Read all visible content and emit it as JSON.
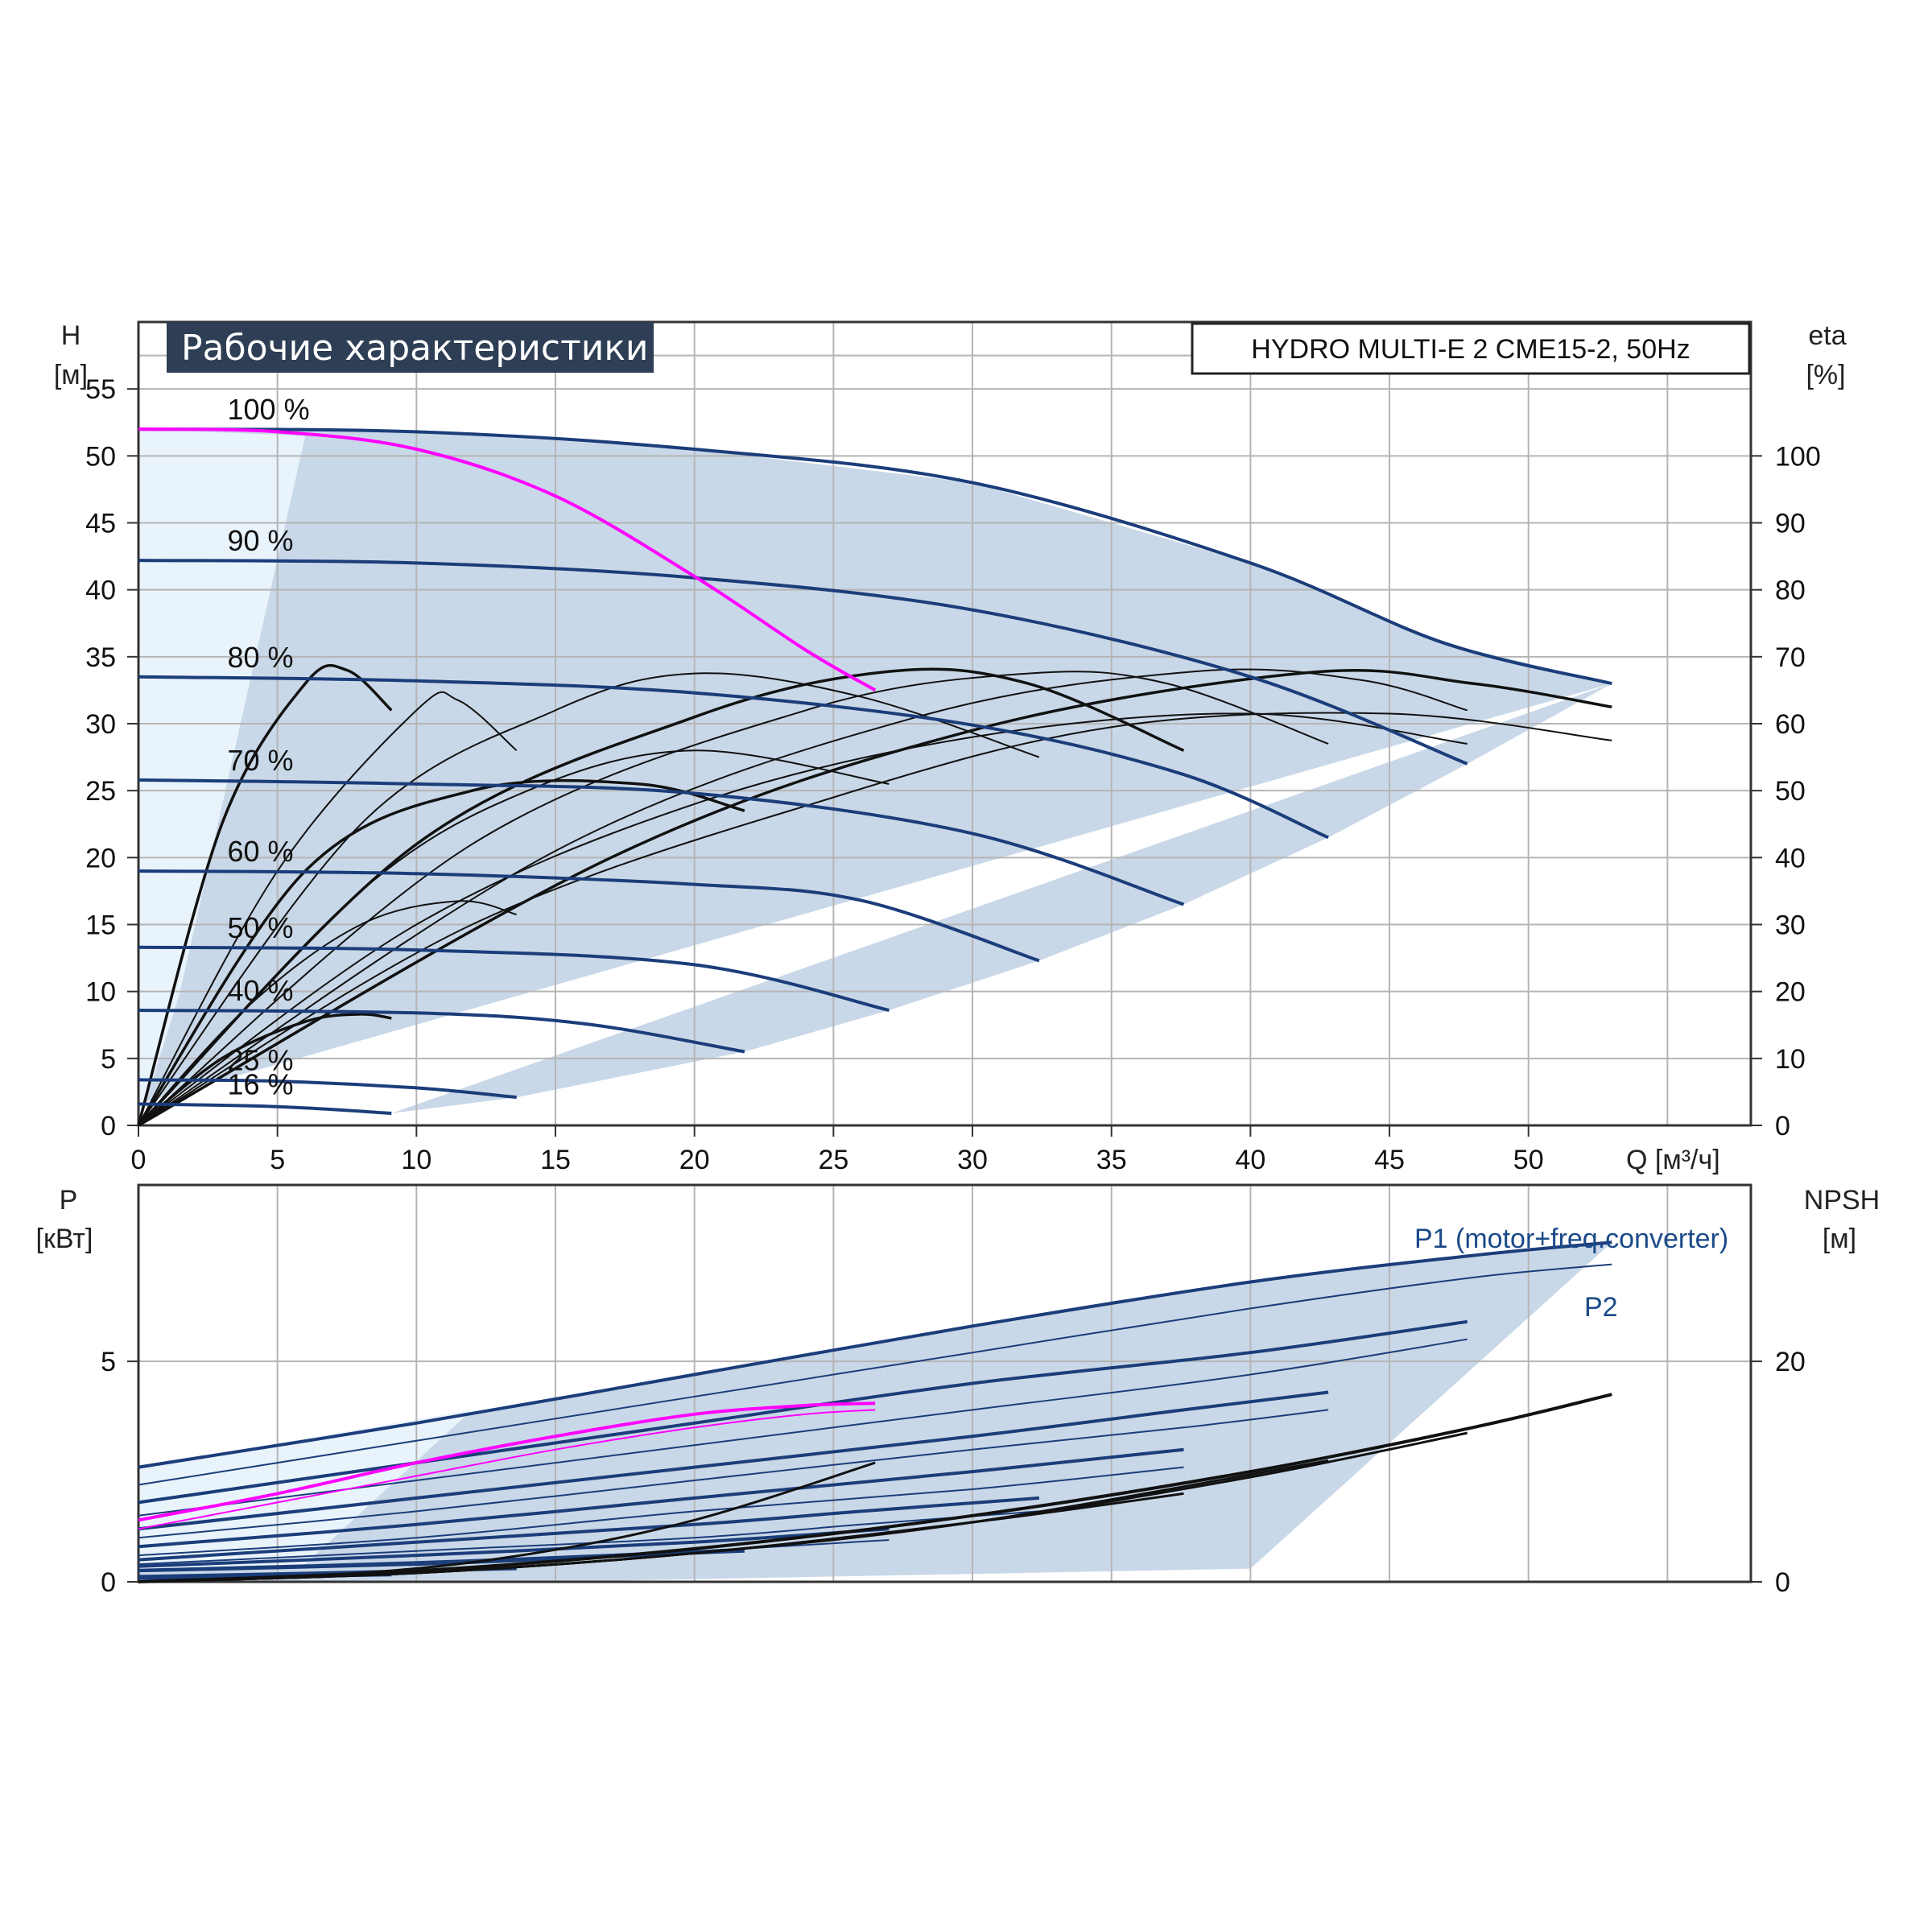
{
  "header": {
    "title": "Рабочие характеристики",
    "model": "HYDRO MULTI-E 2 CME15-2, 50Hz"
  },
  "colors": {
    "head_curve": "#1b3d7a",
    "duty_curve": "#ff00ff",
    "efficiency_curve": "#111111",
    "envelope_fill": "#c9d8e8",
    "light_fill": "#e9f3fb",
    "grid": "#b5b5b5",
    "header_bg": "#2d3e55"
  },
  "chart_data": [
    {
      "type": "line",
      "name_panel": "head",
      "xlabel": "Q [м³/ч]",
      "ylabel": "H",
      "ylabel_unit": "[м]",
      "y2label": "eta",
      "y2label_unit": "[%]",
      "xlim": [
        0,
        58
      ],
      "ylim": [
        0,
        60
      ],
      "y2lim": [
        0,
        120
      ],
      "x_ticks": [
        0,
        5,
        10,
        15,
        20,
        25,
        30,
        35,
        40,
        45,
        50
      ],
      "y_ticks": [
        0,
        5,
        10,
        15,
        20,
        25,
        30,
        35,
        40,
        45,
        50,
        55
      ],
      "y2_ticks": [
        0,
        10,
        20,
        30,
        40,
        50,
        60,
        70,
        80,
        90,
        100
      ],
      "grid": true,
      "speed_curves": [
        {
          "label": "100 %",
          "x": [
            0,
            10,
            20,
            30,
            40,
            47,
            53
          ],
          "y": [
            52,
            51.8,
            50.5,
            48,
            42,
            36,
            33
          ]
        },
        {
          "label": "90 %",
          "x": [
            0,
            10,
            20,
            30,
            40,
            47.8
          ],
          "y": [
            42.2,
            42.0,
            40.9,
            38.5,
            33.5,
            27
          ]
        },
        {
          "label": "80 %",
          "x": [
            0,
            10,
            20,
            30,
            37.6,
            42.8
          ],
          "y": [
            33.5,
            33.2,
            32.3,
            29.9,
            26.2,
            21.5
          ]
        },
        {
          "label": "70 %",
          "x": [
            0,
            10,
            20,
            30,
            37.6
          ],
          "y": [
            25.8,
            25.5,
            24.8,
            21.8,
            16.5
          ]
        },
        {
          "label": "60 %",
          "x": [
            0,
            10,
            20,
            26,
            32.4
          ],
          "y": [
            19.0,
            18.8,
            18.0,
            16.8,
            12.3
          ]
        },
        {
          "label": "50 %",
          "x": [
            0,
            10,
            20,
            27
          ],
          "y": [
            13.3,
            13.1,
            12.0,
            8.6
          ]
        },
        {
          "label": "40 %",
          "x": [
            0,
            10,
            16,
            21.8
          ],
          "y": [
            8.6,
            8.4,
            7.6,
            5.5
          ]
        },
        {
          "label": "25 %",
          "x": [
            0,
            5,
            10,
            13.6
          ],
          "y": [
            3.4,
            3.3,
            2.8,
            2.1
          ]
        },
        {
          "label": "16 %",
          "x": [
            0,
            5,
            9.1
          ],
          "y": [
            1.6,
            1.4,
            0.9
          ]
        }
      ],
      "duty_curve": {
        "x": [
          0,
          5,
          10,
          15,
          20,
          24,
          26.5
        ],
        "y": [
          52,
          51.8,
          50.5,
          47,
          41,
          35.5,
          32.5
        ]
      },
      "efficiency_curves_eta": [
        {
          "x": [
            0,
            3,
            6,
            7.5,
            9.1
          ],
          "y": [
            0,
            45,
            66,
            68,
            62
          ]
        },
        {
          "x": [
            0,
            5,
            10,
            11.5,
            13.6
          ],
          "y": [
            0,
            38,
            62,
            63.5,
            56
          ]
        },
        {
          "x": [
            0,
            8,
            15,
            20,
            26,
            32.4
          ],
          "y": [
            0,
            45,
            62,
            67.5,
            64,
            55
          ]
        },
        {
          "x": [
            0,
            10,
            20,
            27,
            32,
            37.6
          ],
          "y": [
            0,
            42,
            61,
            67.8,
            66,
            56
          ]
        },
        {
          "x": [
            0,
            12,
            24,
            32,
            37,
            42.8
          ],
          "y": [
            0,
            42,
            62,
            67.5,
            66,
            57
          ]
        },
        {
          "x": [
            0,
            15,
            28,
            38,
            44,
            47.8
          ],
          "y": [
            0,
            41,
            61,
            67.8,
            66.5,
            62
          ]
        },
        {
          "x": [
            0,
            17,
            30,
            42,
            48,
            53
          ],
          "y": [
            0,
            40,
            59,
            67.6,
            66,
            62.5
          ]
        },
        {
          "x": [
            0,
            10,
            20,
            30,
            40,
            47.8
          ],
          "y": [
            0,
            30,
            48,
            58,
            61.5,
            57
          ]
        },
        {
          "x": [
            0,
            12,
            25,
            35,
            45,
            53
          ],
          "y": [
            0,
            30,
            49,
            59.5,
            61.5,
            57.5
          ]
        },
        {
          "x": [
            0,
            6,
            12,
            18,
            21.8
          ],
          "y": [
            0,
            38,
            50,
            51,
            47
          ]
        },
        {
          "x": [
            0,
            8,
            14,
            20,
            27
          ],
          "y": [
            0,
            35,
            50,
            56,
            51
          ]
        },
        {
          "x": [
            0,
            4,
            8,
            11.5,
            13.6
          ],
          "y": [
            0,
            18,
            30,
            33.5,
            31.5
          ]
        },
        {
          "x": [
            0,
            3,
            6,
            8,
            9.1
          ],
          "y": [
            0,
            10,
            15.5,
            16.6,
            16
          ]
        }
      ]
    },
    {
      "type": "line",
      "name_panel": "power",
      "xlabel": "",
      "ylabel": "P",
      "ylabel_unit": "[кВт]",
      "y2label": "NPSH",
      "y2label_unit": "[м]",
      "xlim": [
        0,
        58
      ],
      "ylim": [
        0,
        9
      ],
      "y2lim": [
        0,
        36
      ],
      "y_ticks": [
        0,
        5
      ],
      "y2_ticks": [
        0,
        20
      ],
      "grid": true,
      "legend": [
        "P1 (motor+freq.converter)",
        "P2"
      ],
      "p1_curves": [
        {
          "x": [
            0,
            10,
            20,
            30,
            40,
            48,
            53
          ],
          "y": [
            2.6,
            3.6,
            4.7,
            5.8,
            6.8,
            7.4,
            7.7
          ]
        },
        {
          "x": [
            0,
            10,
            20,
            30,
            40,
            47.8
          ],
          "y": [
            1.8,
            2.7,
            3.6,
            4.5,
            5.2,
            5.9
          ]
        },
        {
          "x": [
            0,
            10,
            20,
            30,
            37.6,
            42.8
          ],
          "y": [
            1.2,
            1.9,
            2.6,
            3.3,
            3.9,
            4.3
          ]
        },
        {
          "x": [
            0,
            10,
            20,
            30,
            37.6
          ],
          "y": [
            0.8,
            1.3,
            1.9,
            2.5,
            3.0
          ]
        },
        {
          "x": [
            0,
            10,
            20,
            26,
            32.4
          ],
          "y": [
            0.5,
            0.9,
            1.3,
            1.6,
            1.9
          ]
        },
        {
          "x": [
            0,
            10,
            20,
            27
          ],
          "y": [
            0.35,
            0.6,
            0.9,
            1.2
          ]
        },
        {
          "x": [
            0,
            10,
            16,
            21.8
          ],
          "y": [
            0.25,
            0.4,
            0.55,
            0.7
          ]
        },
        {
          "x": [
            0,
            5,
            10,
            13.6
          ],
          "y": [
            0.12,
            0.18,
            0.25,
            0.3
          ]
        },
        {
          "x": [
            0,
            5,
            9.1
          ],
          "y": [
            0.08,
            0.12,
            0.16
          ]
        }
      ],
      "p2_curves": [
        {
          "x": [
            0,
            10,
            20,
            30,
            40,
            48,
            53
          ],
          "y": [
            2.2,
            3.2,
            4.2,
            5.2,
            6.2,
            6.9,
            7.2
          ]
        },
        {
          "x": [
            0,
            10,
            20,
            30,
            40,
            47.8
          ],
          "y": [
            1.5,
            2.3,
            3.1,
            3.9,
            4.7,
            5.5
          ]
        },
        {
          "x": [
            0,
            10,
            20,
            30,
            37.6,
            42.8
          ],
          "y": [
            1.0,
            1.6,
            2.3,
            3.0,
            3.5,
            3.9
          ]
        },
        {
          "x": [
            0,
            10,
            20,
            30,
            37.6
          ],
          "y": [
            0.6,
            1.0,
            1.6,
            2.1,
            2.6
          ]
        },
        {
          "x": [
            0,
            10,
            20,
            26,
            32.4
          ],
          "y": [
            0.4,
            0.7,
            1.0,
            1.3,
            1.6
          ]
        },
        {
          "x": [
            0,
            10,
            20,
            27
          ],
          "y": [
            0.28,
            0.45,
            0.7,
            0.95
          ]
        }
      ],
      "duty_p1": {
        "x": [
          0,
          5,
          10,
          15,
          20,
          24,
          26.5
        ],
        "y": [
          1.4,
          2.0,
          2.7,
          3.3,
          3.8,
          4.0,
          4.05
        ]
      },
      "duty_p2": {
        "x": [
          0,
          5,
          10,
          15,
          20,
          24,
          26.5
        ],
        "y": [
          1.2,
          1.8,
          2.4,
          3.0,
          3.5,
          3.8,
          3.9
        ]
      },
      "npsh_curves": [
        {
          "x": [
            0,
            10,
            20,
            30,
            40,
            48,
            53
          ],
          "y": [
            0,
            1.0,
            3.0,
            6.0,
            10.0,
            14.0,
            17.0
          ]
        },
        {
          "x": [
            0,
            10,
            20,
            30,
            40,
            47.8
          ],
          "y": [
            0,
            0.8,
            2.6,
            5.4,
            9.5,
            13.5
          ]
        },
        {
          "x": [
            0,
            10,
            20,
            30,
            42.8
          ],
          "y": [
            0,
            0.8,
            2.6,
            5.4,
            11.0
          ]
        },
        {
          "x": [
            0,
            10,
            20,
            30,
            37.6
          ],
          "y": [
            0,
            0.8,
            2.6,
            5.4,
            8.0
          ]
        },
        {
          "x": [
            0,
            8,
            14,
            20,
            26.5
          ],
          "y": [
            0,
            0.8,
            2.5,
            5.6,
            10.8
          ]
        }
      ]
    }
  ]
}
